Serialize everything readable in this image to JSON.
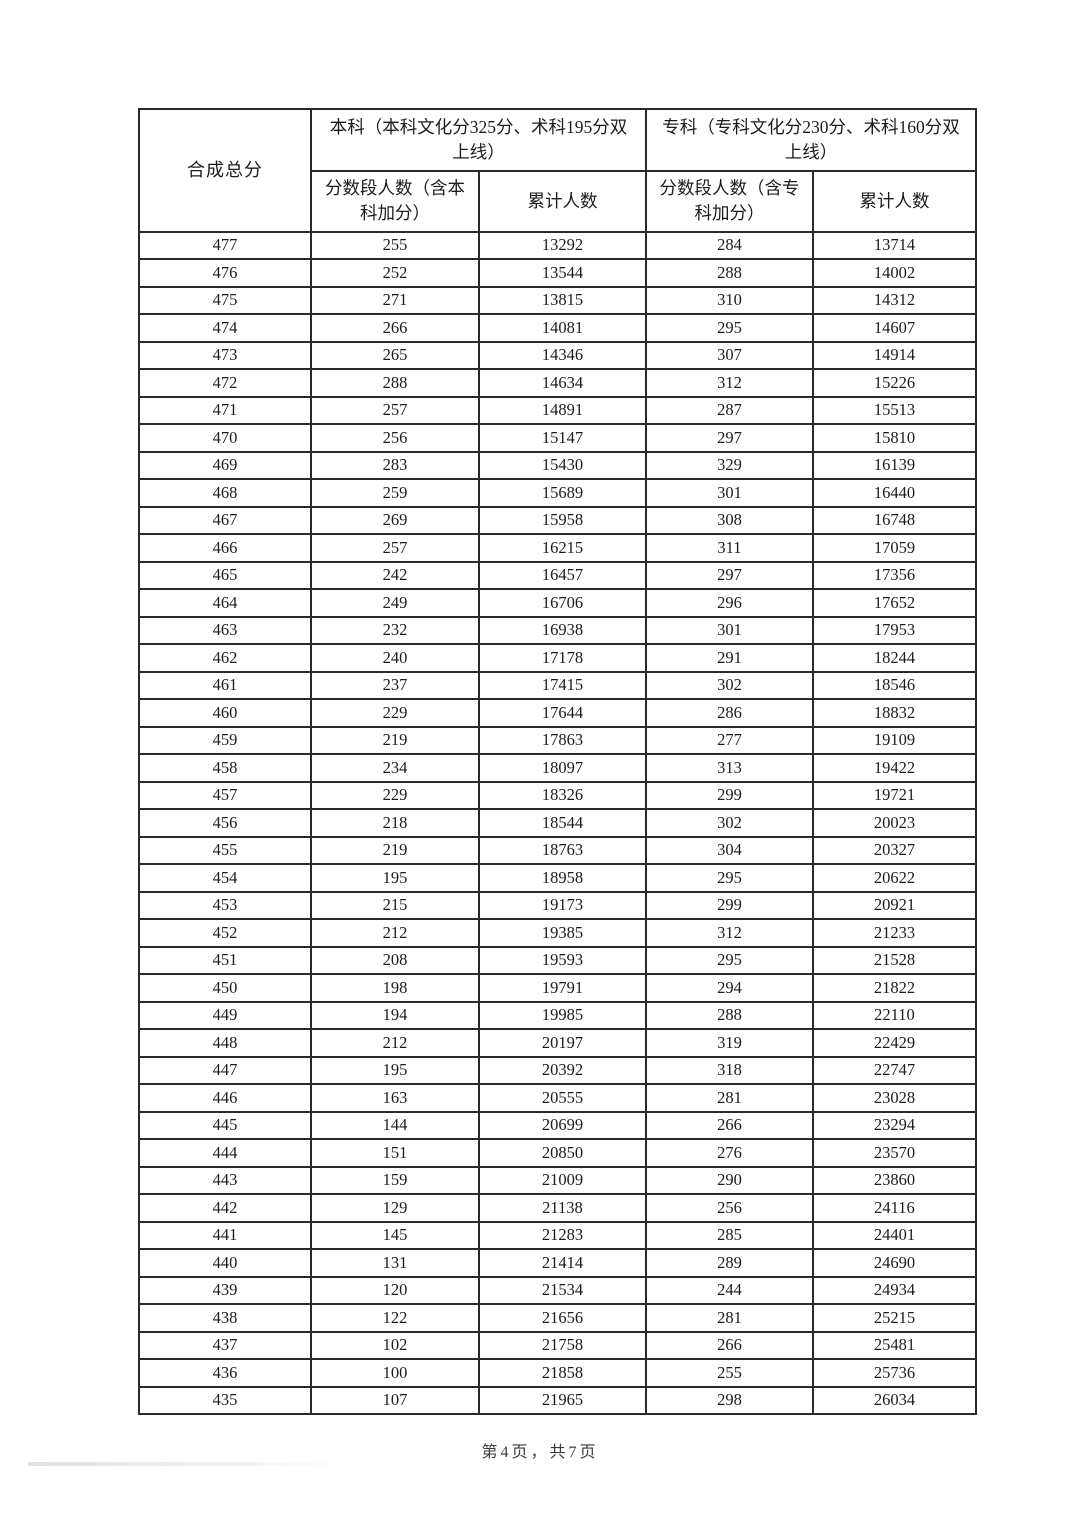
{
  "page": {
    "footer": "第4页，共7页"
  },
  "table": {
    "corner_header": "合成总分",
    "group_headers": [
      "本科（本科文化分325分、术科195分双上线）",
      "专科（专科文化分230分、术科160分双上线）"
    ],
    "sub_headers": [
      "分数段人数（含本科加分）",
      "累计人数",
      "分数段人数（含专科加分）",
      "累计人数"
    ],
    "rows": [
      [
        477,
        255,
        13292,
        284,
        13714
      ],
      [
        476,
        252,
        13544,
        288,
        14002
      ],
      [
        475,
        271,
        13815,
        310,
        14312
      ],
      [
        474,
        266,
        14081,
        295,
        14607
      ],
      [
        473,
        265,
        14346,
        307,
        14914
      ],
      [
        472,
        288,
        14634,
        312,
        15226
      ],
      [
        471,
        257,
        14891,
        287,
        15513
      ],
      [
        470,
        256,
        15147,
        297,
        15810
      ],
      [
        469,
        283,
        15430,
        329,
        16139
      ],
      [
        468,
        259,
        15689,
        301,
        16440
      ],
      [
        467,
        269,
        15958,
        308,
        16748
      ],
      [
        466,
        257,
        16215,
        311,
        17059
      ],
      [
        465,
        242,
        16457,
        297,
        17356
      ],
      [
        464,
        249,
        16706,
        296,
        17652
      ],
      [
        463,
        232,
        16938,
        301,
        17953
      ],
      [
        462,
        240,
        17178,
        291,
        18244
      ],
      [
        461,
        237,
        17415,
        302,
        18546
      ],
      [
        460,
        229,
        17644,
        286,
        18832
      ],
      [
        459,
        219,
        17863,
        277,
        19109
      ],
      [
        458,
        234,
        18097,
        313,
        19422
      ],
      [
        457,
        229,
        18326,
        299,
        19721
      ],
      [
        456,
        218,
        18544,
        302,
        20023
      ],
      [
        455,
        219,
        18763,
        304,
        20327
      ],
      [
        454,
        195,
        18958,
        295,
        20622
      ],
      [
        453,
        215,
        19173,
        299,
        20921
      ],
      [
        452,
        212,
        19385,
        312,
        21233
      ],
      [
        451,
        208,
        19593,
        295,
        21528
      ],
      [
        450,
        198,
        19791,
        294,
        21822
      ],
      [
        449,
        194,
        19985,
        288,
        22110
      ],
      [
        448,
        212,
        20197,
        319,
        22429
      ],
      [
        447,
        195,
        20392,
        318,
        22747
      ],
      [
        446,
        163,
        20555,
        281,
        23028
      ],
      [
        445,
        144,
        20699,
        266,
        23294
      ],
      [
        444,
        151,
        20850,
        276,
        23570
      ],
      [
        443,
        159,
        21009,
        290,
        23860
      ],
      [
        442,
        129,
        21138,
        256,
        24116
      ],
      [
        441,
        145,
        21283,
        285,
        24401
      ],
      [
        440,
        131,
        21414,
        289,
        24690
      ],
      [
        439,
        120,
        21534,
        244,
        24934
      ],
      [
        438,
        122,
        21656,
        281,
        25215
      ],
      [
        437,
        102,
        21758,
        266,
        25481
      ],
      [
        436,
        100,
        21858,
        255,
        25736
      ],
      [
        435,
        107,
        21965,
        298,
        26034
      ]
    ]
  }
}
